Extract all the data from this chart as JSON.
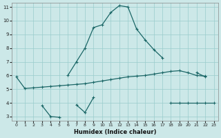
{
  "xlabel": "Humidex (Indice chaleur)",
  "bg_color": "#cce8e8",
  "grid_color": "#99cccc",
  "line_color": "#1a6666",
  "x_min": 0,
  "x_max": 23,
  "y_min": 3,
  "y_max": 11,
  "upper_x": [
    6,
    7,
    8,
    9,
    10,
    11,
    12,
    13,
    14,
    15,
    16,
    17,
    18,
    19,
    20,
    21,
    22
  ],
  "upper_y": [
    6.0,
    7.0,
    8.0,
    9.5,
    9.7,
    10.6,
    11.1,
    11.0,
    9.4,
    8.6,
    7.9,
    7.3,
    null,
    null,
    null,
    6.2,
    5.9
  ],
  "mid_x": [
    0,
    1,
    2,
    3,
    4,
    5,
    6,
    7,
    8,
    9,
    10,
    11,
    12,
    13,
    14,
    15,
    16,
    17,
    18,
    19,
    20,
    21,
    22,
    23
  ],
  "mid_y": [
    5.9,
    5.05,
    5.1,
    5.15,
    5.2,
    5.25,
    5.3,
    5.35,
    5.4,
    5.5,
    5.6,
    5.7,
    5.8,
    5.9,
    5.95,
    6.0,
    6.1,
    6.2,
    6.3,
    6.35,
    6.2,
    6.0,
    5.95,
    null
  ],
  "low_x": [
    3,
    4,
    5,
    6,
    7,
    8,
    9,
    10,
    11,
    12,
    13,
    14,
    15,
    16,
    17,
    18,
    19,
    20,
    21,
    22,
    23
  ],
  "low_y": [
    3.8,
    3.0,
    2.95,
    null,
    3.85,
    3.3,
    4.4,
    null,
    null,
    null,
    null,
    null,
    null,
    null,
    null,
    4.0,
    4.0,
    4.0,
    4.0,
    4.0,
    4.0
  ],
  "xticks": [
    0,
    1,
    2,
    3,
    4,
    5,
    6,
    7,
    8,
    9,
    10,
    11,
    12,
    13,
    14,
    15,
    16,
    17,
    18,
    19,
    20,
    21,
    22,
    23
  ],
  "yticks": [
    3,
    4,
    5,
    6,
    7,
    8,
    9,
    10,
    11
  ]
}
